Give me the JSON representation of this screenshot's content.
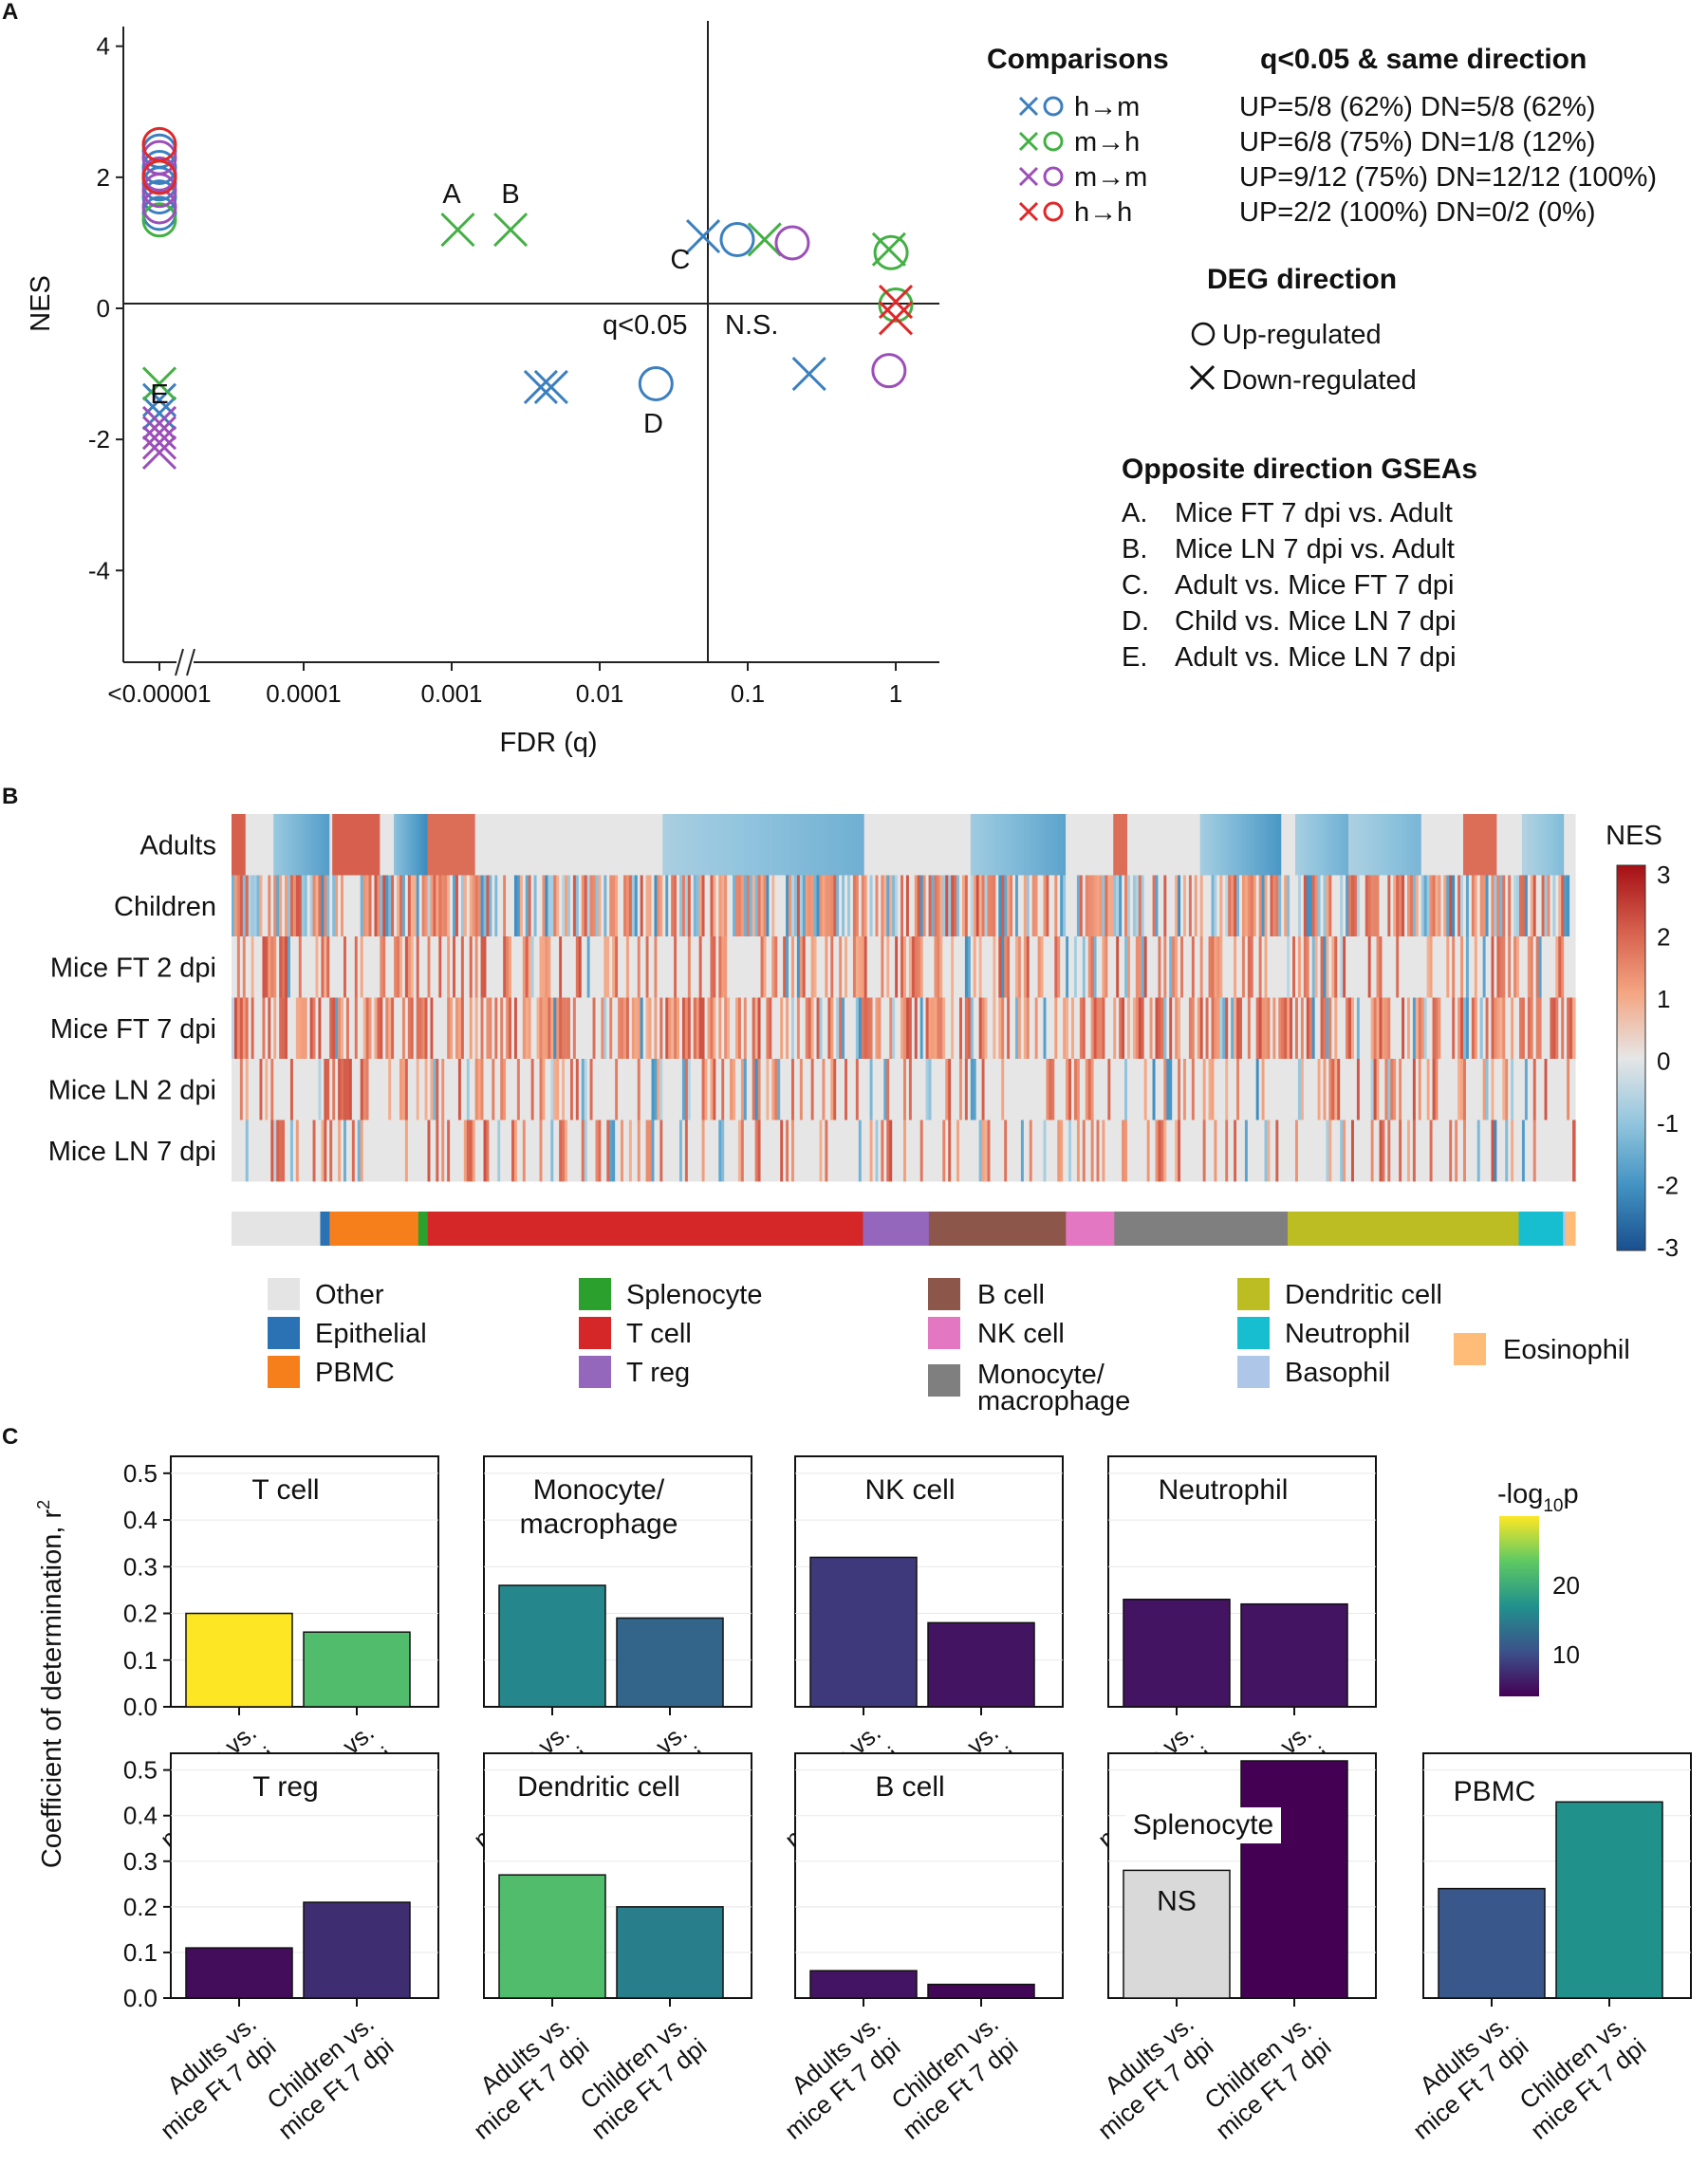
{
  "panels": {
    "a": "A",
    "b": "B",
    "c": "C"
  },
  "chart_data": [
    {
      "panel": "A",
      "type": "scatter",
      "xlabel": "FDR (q)",
      "ylabel": "NES",
      "x_ticks": [
        "<0.00001",
        "0.0001",
        "0.001",
        "0.01",
        "0.1",
        "1"
      ],
      "y_ticks": [
        "4",
        "2",
        "0",
        "-2",
        "-4"
      ],
      "ylim": [
        -5.4,
        4.3
      ],
      "region_labels": {
        "left": "q<0.05",
        "right": "N.S."
      },
      "series": [
        {
          "name": "h→m",
          "color": "#3b7fbf",
          "points": [
            {
              "x": 1e-06,
              "y": 2.4,
              "shape": "circle"
            },
            {
              "x": 1e-06,
              "y": 2.15,
              "shape": "circle"
            },
            {
              "x": 1e-06,
              "y": 1.9,
              "shape": "circle"
            },
            {
              "x": 1e-06,
              "y": 1.7,
              "shape": "circle"
            },
            {
              "x": 1e-06,
              "y": 1.45,
              "shape": "circle"
            },
            {
              "x": 0.004,
              "y": -1.2,
              "shape": "cross"
            },
            {
              "x": 0.0047,
              "y": -1.2,
              "shape": "cross"
            },
            {
              "x": 0.05,
              "y": 1.1,
              "shape": "cross"
            },
            {
              "x": 0.024,
              "y": -1.15,
              "shape": "circle"
            },
            {
              "x": 0.085,
              "y": 1.05,
              "shape": "circle"
            },
            {
              "x": 0.26,
              "y": -1.0,
              "shape": "cross"
            },
            {
              "x": 1e-06,
              "y": -1.4,
              "shape": "cross"
            },
            {
              "x": 1e-06,
              "y": -1.6,
              "shape": "cross"
            }
          ]
        },
        {
          "name": "m→h",
          "color": "#44b044",
          "points": [
            {
              "x": 1e-06,
              "y": 2.0,
              "shape": "circle"
            },
            {
              "x": 1e-06,
              "y": 1.35,
              "shape": "circle"
            },
            {
              "x": 0.0011,
              "y": 1.2,
              "shape": "cross"
            },
            {
              "x": 0.0025,
              "y": 1.2,
              "shape": "cross"
            },
            {
              "x": 0.13,
              "y": 1.05,
              "shape": "cross"
            },
            {
              "x": 0.9,
              "y": 0.9,
              "shape": "cross"
            },
            {
              "x": 0.93,
              "y": 0.85,
              "shape": "circle"
            },
            {
              "x": 1.0,
              "y": 0.05,
              "shape": "circle"
            },
            {
              "x": 1e-06,
              "y": -1.15,
              "shape": "cross"
            }
          ]
        },
        {
          "name": "m→m",
          "color": "#9b4fb8",
          "points": [
            {
              "x": 1e-06,
              "y": 2.3,
              "shape": "circle"
            },
            {
              "x": 1e-06,
              "y": 2.05,
              "shape": "circle"
            },
            {
              "x": 1e-06,
              "y": 1.8,
              "shape": "circle"
            },
            {
              "x": 1e-06,
              "y": 1.55,
              "shape": "circle"
            },
            {
              "x": 0.2,
              "y": 1.0,
              "shape": "circle"
            },
            {
              "x": 0.9,
              "y": -0.95,
              "shape": "circle"
            },
            {
              "x": 1e-06,
              "y": -1.75,
              "shape": "cross"
            },
            {
              "x": 1e-06,
              "y": -1.9,
              "shape": "cross"
            },
            {
              "x": 1e-06,
              "y": -2.05,
              "shape": "cross"
            },
            {
              "x": 1e-06,
              "y": -2.2,
              "shape": "cross"
            }
          ]
        },
        {
          "name": "h→h",
          "color": "#e02828",
          "points": [
            {
              "x": 1e-06,
              "y": 2.5,
              "shape": "circle"
            },
            {
              "x": 1e-06,
              "y": 2.0,
              "shape": "circle"
            },
            {
              "x": 1.0,
              "y": -0.15,
              "shape": "cross"
            },
            {
              "x": 1.0,
              "y": 0.1,
              "shape": "cross"
            }
          ]
        }
      ],
      "point_labels": [
        {
          "text": "A",
          "x": 0.001,
          "y": 1.75
        },
        {
          "text": "B",
          "x": 0.0025,
          "y": 1.75
        },
        {
          "text": "C",
          "x": 0.035,
          "y": 0.75
        },
        {
          "text": "D",
          "x": 0.023,
          "y": -1.75
        },
        {
          "text": "E",
          "x": 1.7e-06,
          "y": -1.3
        }
      ],
      "legend": {
        "comparisons_title": "Comparisons",
        "qdir_title": "q<0.05 & same direction",
        "rows": [
          {
            "label": "h→m",
            "color": "#3b7fbf",
            "stats": "UP=5/8 (62%)  DN=5/8 (62%)"
          },
          {
            "label": "m→h",
            "color": "#44b044",
            "stats": "UP=6/8 (75%)  DN=1/8 (12%)"
          },
          {
            "label": "m→m",
            "color": "#9b4fb8",
            "stats": "UP=9/12 (75%) DN=12/12 (100%)"
          },
          {
            "label": "h→h",
            "color": "#e02828",
            "stats": "UP=2/2 (100%) DN=0/2 (0%)"
          }
        ],
        "deg_title": "DEG direction",
        "deg_up": "Up-regulated",
        "deg_down": "Down-regulated",
        "opp_title": "Opposite direction GSEAs",
        "opp_items": [
          {
            "key": "A.",
            "text": "Mice FT 7 dpi vs. Adult"
          },
          {
            "key": "B.",
            "text": "Mice LN 7 dpi vs. Adult"
          },
          {
            "key": "C.",
            "text": "Adult vs. Mice FT 7 dpi"
          },
          {
            "key": "D.",
            "text": "Child vs. Mice LN 7 dpi"
          },
          {
            "key": "E.",
            "text": "Adult vs. Mice LN 7 dpi"
          }
        ]
      }
    },
    {
      "panel": "B",
      "type": "heatmap",
      "rows": [
        "Adults",
        "Children",
        "Mice FT 2 dpi",
        "Mice FT 7 dpi",
        "Mice LN 2 dpi",
        "Mice LN 7 dpi"
      ],
      "colorbar_title": "NES",
      "colorbar_ticks": [
        "3",
        "2",
        "1",
        "0",
        "-1",
        "-2",
        "-3"
      ],
      "value_range": [
        -3,
        3
      ],
      "segments": [
        {
          "name": "Other",
          "color": "#e4e4e4",
          "frac": 0.066
        },
        {
          "name": "Epithelial",
          "color": "#2a72b3",
          "frac": 0.007
        },
        {
          "name": "PBMC",
          "color": "#f77f1b",
          "frac": 0.066
        },
        {
          "name": "Splenocyte",
          "color": "#2ca02c",
          "frac": 0.007
        },
        {
          "name": "T cell",
          "color": "#d62728",
          "frac": 0.324
        },
        {
          "name": "T reg",
          "color": "#9467bd",
          "frac": 0.049
        },
        {
          "name": "B cell",
          "color": "#8c564b",
          "frac": 0.102
        },
        {
          "name": "NK cell",
          "color": "#e377c2",
          "frac": 0.036
        },
        {
          "name": "Monocyte/ macrophage",
          "color": "#7f7f7f",
          "frac": 0.129
        },
        {
          "name": "Dendritic cell",
          "color": "#bcbd22",
          "frac": 0.172
        },
        {
          "name": "Neutrophil",
          "color": "#17becf",
          "frac": 0.033
        },
        {
          "name": "Basophil",
          "color": "#aec7e8",
          "frac": 0.002
        },
        {
          "name": "Eosinophil",
          "color": "#ffbb78",
          "frac": 0.007
        }
      ],
      "legend_labels": {
        "other": "Other",
        "epithelial": "Epithelial",
        "pbmc": "PBMC",
        "splenocyte": "Splenocyte",
        "tcell": "T cell",
        "treg": "T reg",
        "bcell": "B cell",
        "nkcell": "NK cell",
        "mono1": "Monocyte/",
        "mono2": "macrophage",
        "dc": "Dendritic cell",
        "neutro": "Neutrophil",
        "baso": "Basophil",
        "eosino": "Eosinophil"
      }
    },
    {
      "panel": "C",
      "type": "bar",
      "ylabel": "Coefficient of determination, r",
      "ylabel_sup": "2",
      "categories": [
        "Adults vs. mice Ft 7 dpi",
        "Children vs. mice Ft 7 dpi"
      ],
      "category_lines": [
        [
          "Adults vs.",
          "mice Ft 7 dpi"
        ],
        [
          "Children vs.",
          "mice Ft 7 dpi"
        ]
      ],
      "y_ticks": [
        "0.0",
        "0.1",
        "0.2",
        "0.3",
        "0.4",
        "0.5"
      ],
      "ylim": [
        0,
        0.52
      ],
      "colorbar": {
        "title": "-log",
        "sub": "10",
        "tail": "p",
        "ticks": [
          "20",
          "10"
        ],
        "range": [
          4,
          30
        ]
      },
      "facets": [
        {
          "title": [
            "T cell"
          ],
          "values": [
            0.2,
            0.16
          ],
          "neglog10p": [
            30,
            22
          ]
        },
        {
          "title": [
            "Monocyte/",
            "macrophage"
          ],
          "values": [
            0.26,
            0.19
          ],
          "neglog10p": [
            16,
            12.5
          ]
        },
        {
          "title": [
            "NK cell"
          ],
          "values": [
            0.32,
            0.18
          ],
          "neglog10p": [
            8.5,
            5.5
          ]
        },
        {
          "title": [
            "Neutrophil"
          ],
          "values": [
            0.23,
            0.22
          ],
          "neglog10p": [
            5.5,
            5.5
          ]
        },
        {
          "title": [
            "T reg"
          ],
          "values": [
            0.11,
            0.21
          ],
          "neglog10p": [
            5,
            7.5
          ]
        },
        {
          "title": [
            "Dendritic cell"
          ],
          "values": [
            0.27,
            0.2
          ],
          "neglog10p": [
            22,
            15
          ]
        },
        {
          "title": [
            "B cell"
          ],
          "values": [
            0.06,
            0.03
          ],
          "neglog10p": [
            5.5,
            4.5
          ]
        },
        {
          "title": [
            "Splenocyte"
          ],
          "values": [
            0.28,
            0.52
          ],
          "neglog10p": [
            null,
            4
          ],
          "ns_label": "NS"
        },
        {
          "title": [
            "PBMC"
          ],
          "values": [
            0.24,
            0.43
          ],
          "neglog10p": [
            11,
            17
          ]
        }
      ]
    }
  ]
}
